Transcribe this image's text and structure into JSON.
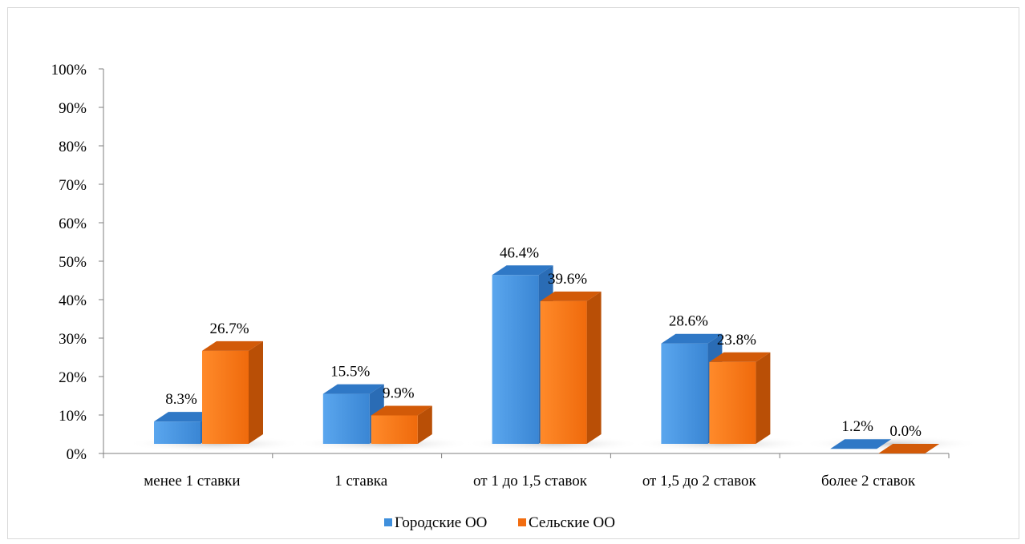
{
  "chart_data": {
    "type": "bar",
    "categories": [
      "менее 1 ставки",
      "1 ставка",
      "от 1 до 1,5 ставок",
      "от 1,5 до 2 ставок",
      "более 2 ставок"
    ],
    "series": [
      {
        "name": "Городские ОО",
        "values": [
          8.3,
          15.5,
          46.4,
          28.6,
          1.2
        ],
        "labels": [
          "8.3%",
          "15.5%",
          "46.4%",
          "28.6%",
          "1.2%"
        ],
        "color": "#3f8fdc"
      },
      {
        "name": "Сельские ОО",
        "values": [
          26.7,
          9.9,
          39.6,
          23.8,
          0.0
        ],
        "labels": [
          "26.7%",
          "9.9%",
          "39.6%",
          "23.8%",
          "0.0%"
        ],
        "color": "#f26d10"
      }
    ],
    "yticks": [
      "0%",
      "10%",
      "20%",
      "30%",
      "40%",
      "50%",
      "60%",
      "70%",
      "80%",
      "90%",
      "100%"
    ],
    "ylim": [
      0,
      100
    ],
    "title": "",
    "xlabel": "",
    "ylabel": "",
    "legend_position": "bottom",
    "grid": false,
    "style": "3d-column"
  }
}
